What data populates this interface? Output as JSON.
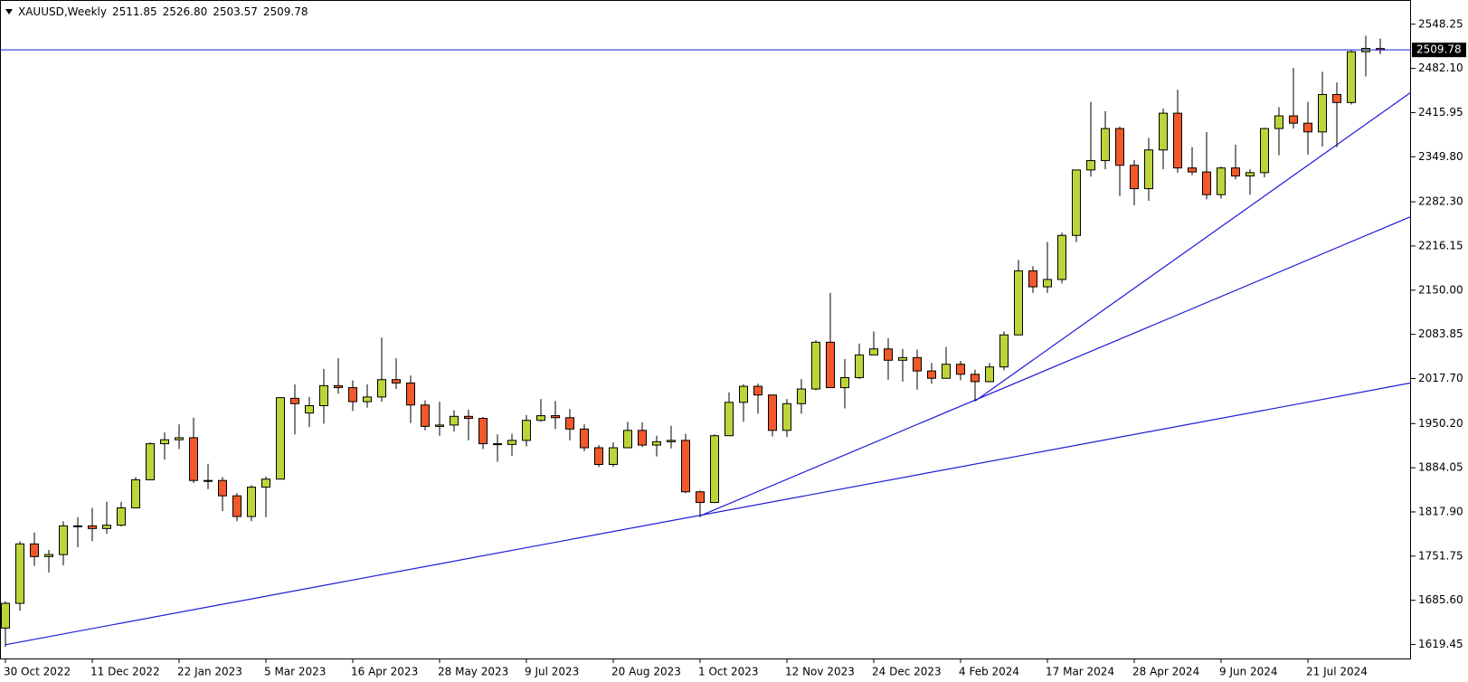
{
  "chart_data": {
    "type": "candlestick",
    "symbol": "XAUUSD,Weekly",
    "last_labels": [
      "2511.85",
      "2526.80",
      "2503.57",
      "2509.78"
    ],
    "categories": [
      "30 Oct 2022",
      null,
      null,
      null,
      null,
      null,
      "11 Dec 2022",
      null,
      null,
      null,
      null,
      null,
      "22 Jan 2023",
      null,
      null,
      null,
      null,
      null,
      "5 Mar 2023",
      null,
      null,
      null,
      null,
      null,
      "16 Apr 2023",
      null,
      null,
      null,
      null,
      null,
      "28 May 2023",
      null,
      null,
      null,
      null,
      null,
      "9 Jul 2023",
      null,
      null,
      null,
      null,
      null,
      "20 Aug 2023",
      null,
      null,
      null,
      null,
      null,
      "1 Oct 2023",
      null,
      null,
      null,
      null,
      null,
      "12 Nov 2023",
      null,
      null,
      null,
      null,
      null,
      "24 Dec 2023",
      null,
      null,
      null,
      null,
      null,
      "4 Feb 2024",
      null,
      null,
      null,
      null,
      null,
      "17 Mar 2024",
      null,
      null,
      null,
      null,
      null,
      "28 Apr 2024",
      null,
      null,
      null,
      null,
      null,
      "9 Jun 2024",
      null,
      null,
      null,
      null,
      null,
      "21 Jul 2024",
      null,
      null,
      null,
      null,
      null
    ],
    "open": [
      1644,
      1681,
      1770,
      1751,
      1754,
      1797,
      1797,
      1793,
      1798,
      1824,
      1866,
      1920,
      1926,
      1929,
      1865,
      1865,
      1842,
      1811,
      1855,
      1867,
      1988,
      1966,
      1977,
      2007,
      2004,
      1983,
      1990,
      2016,
      2011,
      1978,
      1946,
      1948,
      1961,
      1958,
      1920,
      1919,
      1925,
      1955,
      1962,
      1959,
      1942,
      1914,
      1889,
      1914,
      1940,
      1918,
      1923,
      1925,
      1848,
      1832,
      1932,
      1982,
      2006,
      1993,
      1940,
      1980,
      2002,
      2072,
      2004,
      2019,
      2053,
      2062,
      2045,
      2049,
      2029,
      2018,
      2039,
      2024,
      2013,
      2035,
      2083,
      2179,
      2155,
      2166,
      2232,
      2330,
      2344,
      2392,
      2337,
      2302,
      2360,
      2415,
      2333,
      2327,
      2293,
      2333,
      2321,
      2326,
      2392,
      2411,
      2400,
      2387,
      2443,
      2431,
      2507,
      2511.85
    ],
    "high": [
      1684,
      1774,
      1787,
      1761,
      1804,
      1810,
      1824,
      1833,
      1833,
      1870,
      1922,
      1937,
      1949,
      1959,
      1890,
      1870,
      1846,
      1858,
      1871,
      1989,
      2009,
      1990,
      2032,
      2048,
      2015,
      2009,
      2079,
      2048,
      2022,
      1985,
      1983,
      1970,
      1971,
      1960,
      1934,
      1935,
      1963,
      1987,
      1984,
      1972,
      1949,
      1918,
      1922,
      1953,
      1952,
      1932,
      1947,
      1935,
      1850,
      1934,
      1997,
      2009,
      2010,
      1993,
      1987,
      2017,
      2075,
      2146,
      2047,
      2070,
      2088,
      2078,
      2062,
      2061,
      2041,
      2065,
      2044,
      2031,
      2041,
      2088,
      2195,
      2186,
      2222,
      2236,
      2330,
      2432,
      2418,
      2395,
      2345,
      2378,
      2422,
      2450,
      2364,
      2387,
      2335,
      2368,
      2331,
      2393,
      2424,
      2483,
      2432,
      2477,
      2461,
      2509,
      2531,
      2526.8
    ],
    "low": [
      1616,
      1670,
      1737,
      1727,
      1738,
      1765,
      1774,
      1785,
      1796,
      1824,
      1866,
      1896,
      1912,
      1861,
      1852,
      1819,
      1804,
      1804,
      1810,
      1867,
      1934,
      1945,
      1950,
      1995,
      1969,
      1974,
      1983,
      2002,
      1951,
      1940,
      1932,
      1938,
      1925,
      1912,
      1893,
      1902,
      1916,
      1953,
      1942,
      1925,
      1909,
      1885,
      1885,
      1914,
      1915,
      1901,
      1913,
      1846,
      1810,
      1831,
      1932,
      1953,
      1965,
      1931,
      1930,
      1965,
      2000,
      2005,
      1973,
      2017,
      2053,
      2016,
      2013,
      2001,
      2010,
      2018,
      2015,
      1984,
      2012,
      2030,
      2083,
      2146,
      2146,
      2160,
      2222,
      2320,
      2331,
      2291,
      2277,
      2284,
      2331,
      2326,
      2322,
      2286,
      2287,
      2316,
      2293,
      2319,
      2352,
      2392,
      2353,
      2365,
      2364,
      2428,
      2470,
      2503.57
    ],
    "close": [
      1681,
      1770,
      1751,
      1754,
      1797,
      1797,
      1793,
      1798,
      1824,
      1866,
      1920,
      1926,
      1929,
      1865,
      1865,
      1842,
      1811,
      1855,
      1867,
      1989,
      1980,
      1977,
      2007,
      2004,
      1983,
      1990,
      2016,
      2011,
      1978,
      1946,
      1948,
      1961,
      1958,
      1920,
      1919,
      1925,
      1955,
      1962,
      1959,
      1942,
      1914,
      1889,
      1914,
      1940,
      1918,
      1923,
      1925,
      1848,
      1832,
      1932,
      1982,
      2006,
      1993,
      1940,
      1980,
      2002,
      2072,
      2004,
      2019,
      2053,
      2062,
      2045,
      2049,
      2029,
      2018,
      2039,
      2024,
      2013,
      2035,
      2083,
      2179,
      2155,
      2166,
      2232,
      2330,
      2344,
      2392,
      2337,
      2302,
      2360,
      2415,
      2333,
      2327,
      2293,
      2333,
      2321,
      2326,
      2392,
      2411,
      2400,
      2387,
      2443,
      2431,
      2507,
      2512,
      2509.78
    ],
    "up_color": "#bdd43a",
    "down_color": "#f1592a",
    "line_color": "#1c1cd8",
    "ylim": [
      1598.4,
      2579.1
    ],
    "yticks": [
      {
        "value": 1619.45,
        "label": "1619.45"
      },
      {
        "value": 1685.6,
        "label": "1685.60"
      },
      {
        "value": 1751.75,
        "label": "1751.75"
      },
      {
        "value": 1817.9,
        "label": "1817.90"
      },
      {
        "value": 1884.05,
        "label": "1884.05"
      },
      {
        "value": 1950.2,
        "label": "1950.20"
      },
      {
        "value": 2017.7,
        "label": "2017.70"
      },
      {
        "value": 2083.85,
        "label": "2083.85"
      },
      {
        "value": 2150,
        "label": "2150.00"
      },
      {
        "value": 2216.15,
        "label": "2216.15"
      },
      {
        "value": 2282.3,
        "label": "2282.30"
      },
      {
        "value": 2349.8,
        "label": "2349.80"
      },
      {
        "value": 2415.95,
        "label": "2415.95"
      },
      {
        "value": 2482.1,
        "label": "2482.10"
      },
      {
        "value": 2548.25,
        "label": "2548.25"
      }
    ],
    "current_price": {
      "value": 2509.78,
      "label": "2509.78"
    },
    "trendlines": [
      {
        "x": [
          0,
          97.1
        ],
        "y": [
          1619,
          2011
        ]
      },
      {
        "x": [
          48,
          97.1
        ],
        "y": [
          1812,
          2260
        ]
      },
      {
        "x": [
          67,
          97.1
        ],
        "y": [
          1984,
          2446
        ]
      }
    ]
  }
}
